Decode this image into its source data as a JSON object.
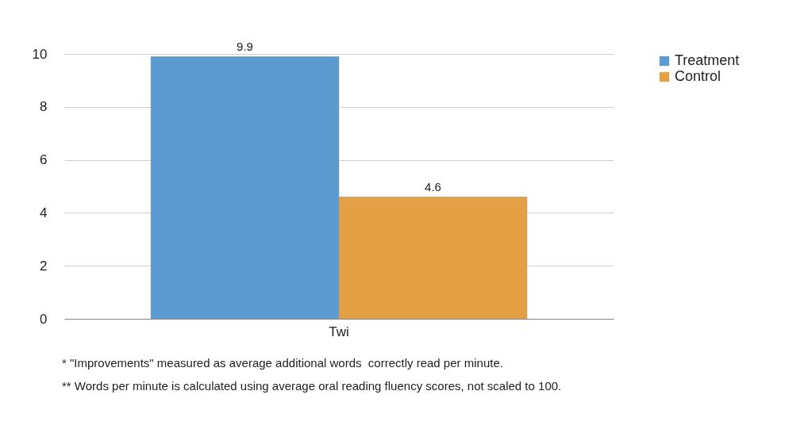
{
  "chart_data": {
    "type": "bar",
    "categories": [
      "Twi"
    ],
    "series": [
      {
        "name": "Treatment",
        "color": "#5b9bd0",
        "values": [
          9.9
        ]
      },
      {
        "name": "Control",
        "color": "#e4a045",
        "values": [
          4.6
        ]
      }
    ],
    "ylim": [
      0,
      10
    ],
    "yticks": [
      0,
      2,
      4,
      6,
      8,
      10
    ],
    "grid": "y",
    "legend": "right",
    "data_labels": true,
    "annotations": [
      "* \"Improvements\" measured as average additional words  correctly read per minute.",
      "** Words per minute is calculated using average oral reading fluency scores, not scaled to 100."
    ]
  }
}
